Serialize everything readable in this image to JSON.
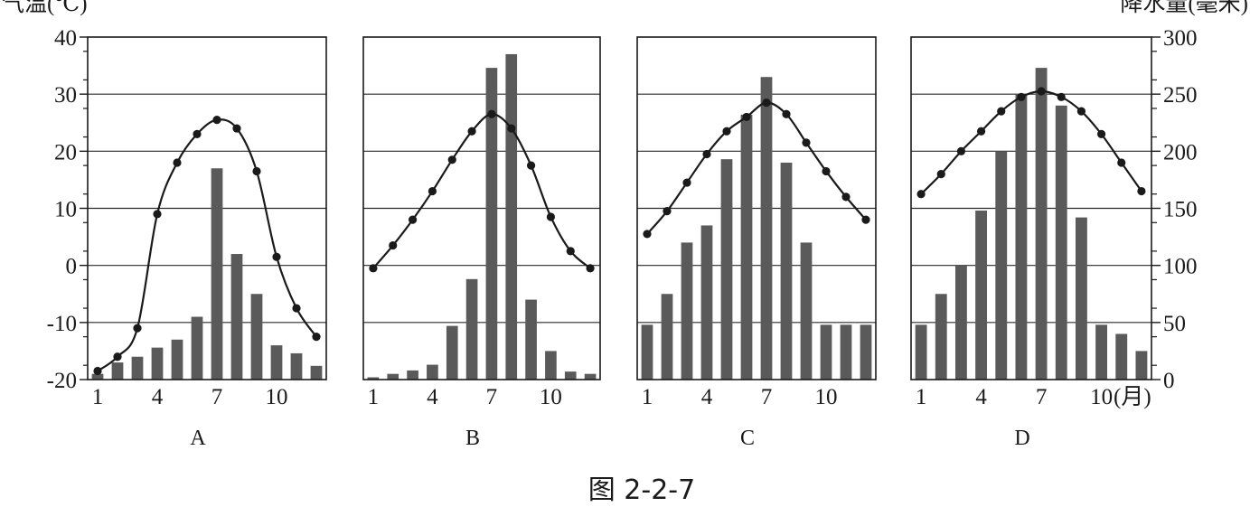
{
  "figure": {
    "caption": "图 2-2-7",
    "left_axis_title": "气温(℃)",
    "right_axis_title": "降水量(毫米)",
    "month_unit": "(月)"
  },
  "chart_data": [
    {
      "type": "bar",
      "panel": "A",
      "x": [
        1,
        2,
        3,
        4,
        5,
        6,
        7,
        8,
        9,
        10,
        11,
        12
      ],
      "x_ticks": [
        "1",
        "4",
        "7",
        "10"
      ],
      "series": [
        {
          "kind": "line",
          "axis": "left",
          "values": [
            -18.5,
            -16,
            -11,
            9,
            18,
            23,
            25.5,
            24,
            16.5,
            1.5,
            -7.5,
            -12.5
          ]
        },
        {
          "kind": "bar",
          "axis": "right",
          "values": [
            5,
            15,
            20,
            28,
            35,
            55,
            185,
            110,
            75,
            30,
            23,
            12
          ]
        }
      ],
      "left_axis": {
        "ylim": [
          -20,
          40
        ],
        "ticks": [
          "-20",
          "-10",
          "0",
          "10",
          "20",
          "30",
          "40"
        ]
      },
      "right_axis": {
        "ylim": [
          0,
          300
        ]
      }
    },
    {
      "type": "bar",
      "panel": "B",
      "x": [
        1,
        2,
        3,
        4,
        5,
        6,
        7,
        8,
        9,
        10,
        11,
        12
      ],
      "x_ticks": [
        "1",
        "4",
        "7",
        "10"
      ],
      "series": [
        {
          "kind": "line",
          "axis": "left",
          "values": [
            -0.5,
            3.5,
            8,
            13,
            18.5,
            23.5,
            26.5,
            24,
            17.5,
            8.5,
            2.5,
            -0.5
          ]
        },
        {
          "kind": "bar",
          "axis": "right",
          "values": [
            2,
            5,
            8,
            13,
            47,
            88,
            273,
            285,
            70,
            25,
            7,
            5
          ]
        }
      ],
      "left_axis": {
        "ylim": [
          -20,
          40
        ]
      },
      "right_axis": {
        "ylim": [
          0,
          300
        ]
      }
    },
    {
      "type": "bar",
      "panel": "C",
      "x": [
        1,
        2,
        3,
        4,
        5,
        6,
        7,
        8,
        9,
        10,
        11,
        12
      ],
      "x_ticks": [
        "1",
        "4",
        "7",
        "10"
      ],
      "series": [
        {
          "kind": "line",
          "axis": "left",
          "values": [
            5.5,
            9.5,
            14.5,
            19.5,
            23.5,
            26,
            28.5,
            26.5,
            21.5,
            16.5,
            12,
            8
          ]
        },
        {
          "kind": "bar",
          "axis": "right",
          "values": [
            48,
            75,
            120,
            135,
            193,
            232,
            265,
            190,
            120,
            48,
            48,
            48
          ]
        }
      ],
      "left_axis": {
        "ylim": [
          -20,
          40
        ]
      },
      "right_axis": {
        "ylim": [
          0,
          300
        ]
      }
    },
    {
      "type": "bar",
      "panel": "D",
      "x": [
        1,
        2,
        3,
        4,
        5,
        6,
        7,
        8,
        9,
        10,
        11,
        12
      ],
      "x_ticks": [
        "1",
        "4",
        "7",
        "10"
      ],
      "series": [
        {
          "kind": "line",
          "axis": "left",
          "values": [
            12.5,
            16,
            20,
            23.5,
            27,
            29.5,
            30.5,
            29.5,
            27,
            23,
            18,
            13
          ]
        },
        {
          "kind": "bar",
          "axis": "right",
          "values": [
            48,
            75,
            100,
            148,
            200,
            250,
            273,
            240,
            142,
            48,
            40,
            25
          ]
        }
      ],
      "left_axis": {
        "ylim": [
          -20,
          40
        ]
      },
      "right_axis": {
        "ylim": [
          0,
          300
        ],
        "ticks": [
          "0",
          "50",
          "100",
          "150",
          "200",
          "250",
          "300"
        ]
      }
    }
  ]
}
